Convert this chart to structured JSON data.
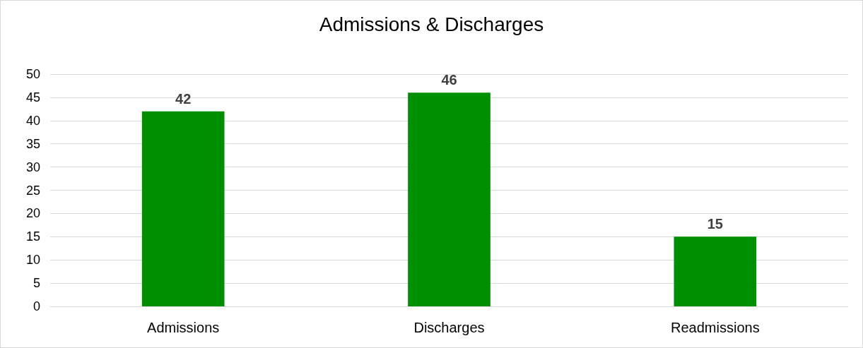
{
  "chart_data": {
    "type": "bar",
    "title": "Admissions & Discharges",
    "categories": [
      "Admissions",
      "Discharges",
      "Readmissions"
    ],
    "values": [
      42,
      46,
      15
    ],
    "color": "#008f00",
    "ylim": [
      0,
      50
    ],
    "yticks": [
      0,
      5,
      10,
      15,
      20,
      25,
      30,
      35,
      40,
      45,
      50
    ],
    "grid": "y",
    "data_labels": true
  }
}
